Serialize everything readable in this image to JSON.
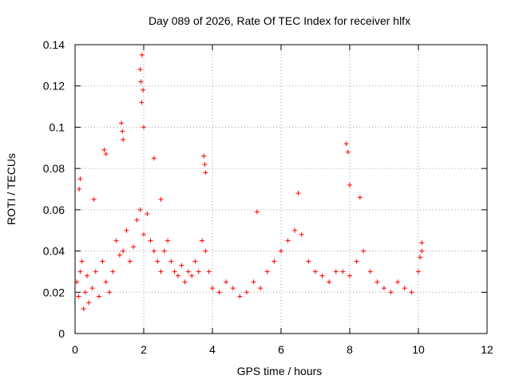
{
  "chart_data": {
    "type": "scatter",
    "title": "Day 089 of 2026, Rate Of TEC Index for receiver hlfx",
    "xlabel": "GPS time / hours",
    "ylabel": "ROTI / TECUs",
    "xlim": [
      0,
      12
    ],
    "ylim": [
      0,
      0.14
    ],
    "x_ticks": [
      0,
      2,
      4,
      6,
      8,
      10,
      12
    ],
    "y_ticks": [
      0,
      0.02,
      0.04,
      0.06,
      0.08,
      0.1,
      0.12,
      0.14
    ],
    "x_tick_labels": [
      "0",
      "2",
      "4",
      "6",
      "8",
      "10",
      "12"
    ],
    "y_tick_labels": [
      "0",
      "0.02",
      "0.04",
      "0.06",
      "0.08",
      "0.1",
      "0.12",
      "0.14"
    ],
    "grid": true,
    "marker": "+",
    "marker_color": "#ff0000",
    "series": [
      {
        "name": "ROTI",
        "x": [
          0.05,
          0.1,
          0.15,
          0.2,
          0.25,
          0.3,
          0.35,
          0.4,
          0.5,
          0.6,
          0.7,
          0.8,
          0.9,
          1.0,
          1.1,
          1.2,
          1.3,
          1.4,
          1.5,
          1.6,
          1.7,
          1.8,
          1.9,
          2.0,
          2.1,
          2.2,
          2.3,
          2.4,
          2.5,
          2.6,
          2.7,
          2.8,
          2.9,
          3.0,
          3.1,
          3.2,
          3.3,
          3.4,
          3.5,
          3.6,
          3.7,
          3.8,
          3.9,
          4.0,
          4.2,
          4.4,
          4.6,
          4.8,
          5.0,
          5.2,
          5.4,
          5.6,
          5.8,
          6.0,
          6.2,
          6.4,
          6.6,
          6.8,
          7.0,
          7.2,
          7.4,
          7.6,
          7.8,
          8.0,
          8.2,
          8.4,
          8.6,
          8.8,
          9.0,
          9.2,
          9.4,
          9.6,
          9.8,
          10.0,
          10.1,
          0.15,
          0.12,
          0.55,
          0.85,
          0.9,
          1.35,
          1.38,
          1.4,
          1.95,
          1.9,
          1.92,
          1.98,
          1.94,
          2.0,
          2.3,
          2.5,
          3.75,
          3.78,
          3.8,
          5.3,
          6.5,
          7.9,
          7.95,
          8.0,
          8.3,
          10.1,
          10.05
        ],
        "y": [
          0.025,
          0.018,
          0.03,
          0.035,
          0.012,
          0.02,
          0.028,
          0.015,
          0.022,
          0.03,
          0.018,
          0.035,
          0.025,
          0.02,
          0.03,
          0.045,
          0.038,
          0.04,
          0.05,
          0.035,
          0.042,
          0.055,
          0.06,
          0.048,
          0.058,
          0.045,
          0.04,
          0.035,
          0.03,
          0.04,
          0.045,
          0.035,
          0.03,
          0.028,
          0.033,
          0.025,
          0.03,
          0.028,
          0.035,
          0.03,
          0.045,
          0.04,
          0.03,
          0.022,
          0.02,
          0.025,
          0.022,
          0.018,
          0.02,
          0.025,
          0.022,
          0.03,
          0.035,
          0.04,
          0.045,
          0.05,
          0.048,
          0.035,
          0.03,
          0.028,
          0.025,
          0.03,
          0.03,
          0.028,
          0.035,
          0.04,
          0.03,
          0.025,
          0.022,
          0.02,
          0.025,
          0.022,
          0.02,
          0.03,
          0.04,
          0.075,
          0.07,
          0.065,
          0.089,
          0.087,
          0.102,
          0.098,
          0.094,
          0.135,
          0.128,
          0.122,
          0.118,
          0.112,
          0.1,
          0.085,
          0.065,
          0.086,
          0.082,
          0.078,
          0.059,
          0.068,
          0.092,
          0.088,
          0.072,
          0.066,
          0.044,
          0.037
        ]
      }
    ]
  }
}
